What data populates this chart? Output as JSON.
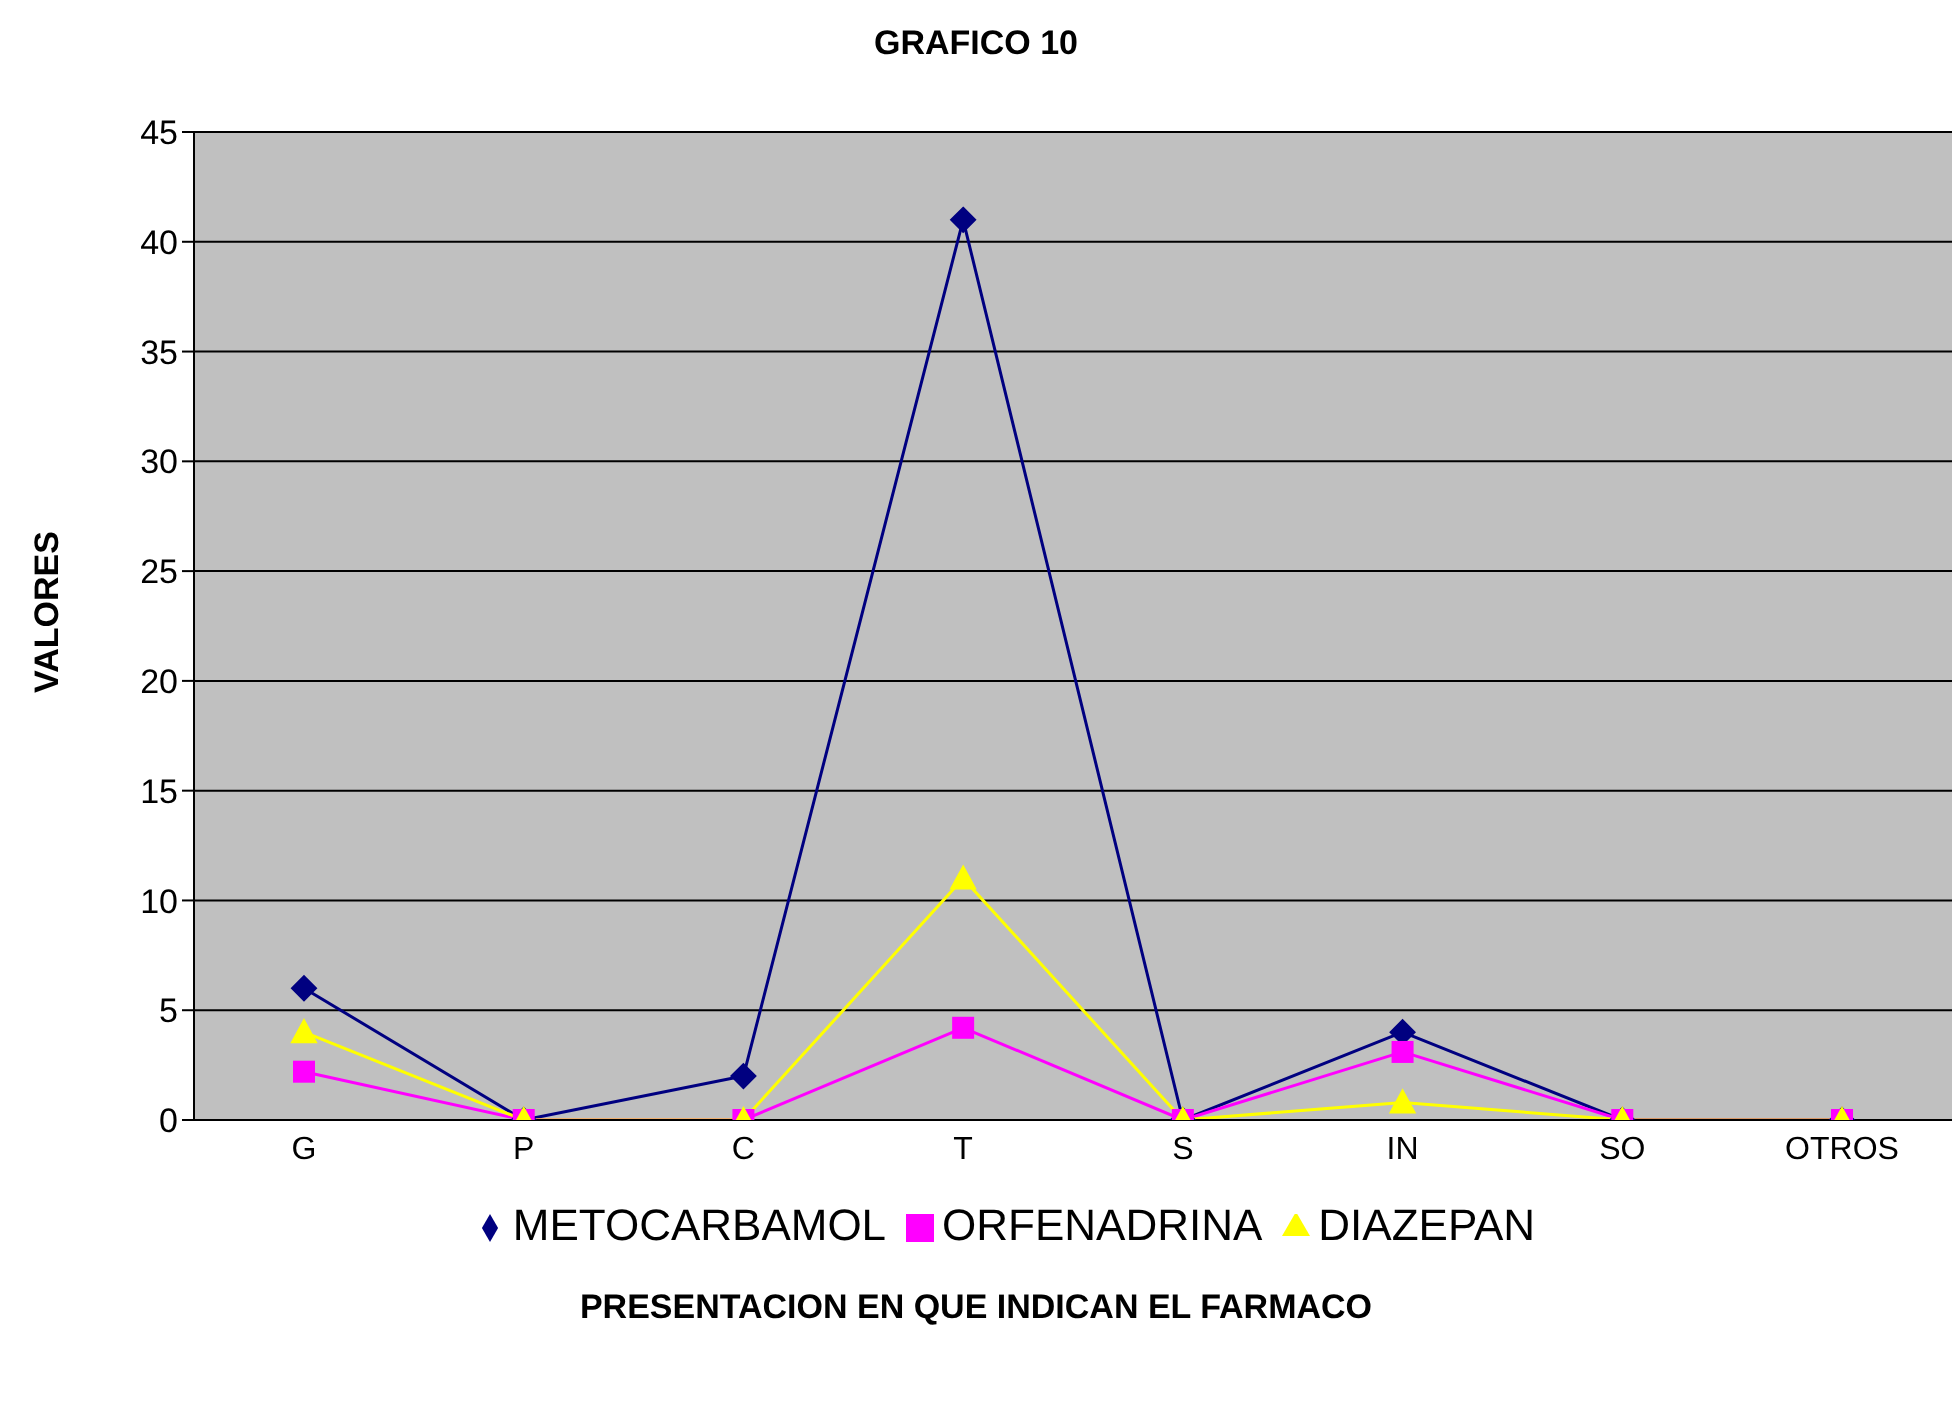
{
  "chart_data": {
    "type": "line",
    "title": "GRAFICO 10",
    "xlabel": "PRESENTACION EN QUE INDICAN EL FARMACO",
    "ylabel": "VALORES",
    "categories": [
      "G",
      "P",
      "C",
      "T",
      "S",
      "IN",
      "SO",
      "OTROS"
    ],
    "series": [
      {
        "name": "METOCARBAMOL",
        "color": "#000080",
        "marker": "diamond",
        "values": [
          6,
          0,
          2,
          41,
          0,
          4,
          0,
          0
        ]
      },
      {
        "name": "ORFENADRINA",
        "color": "#ff00ff",
        "marker": "square",
        "values": [
          2.2,
          0,
          0,
          4.2,
          0,
          3.1,
          0,
          0
        ]
      },
      {
        "name": "DIAZEPAN",
        "color": "#ffff00",
        "marker": "triangle",
        "values": [
          4,
          0,
          0,
          11,
          0,
          0.8,
          0,
          0
        ]
      }
    ],
    "ylim": [
      0,
      45
    ],
    "yticks": [
      0,
      5,
      10,
      15,
      20,
      25,
      30,
      35,
      40,
      45
    ],
    "grid": "y",
    "legend": "bottom"
  }
}
